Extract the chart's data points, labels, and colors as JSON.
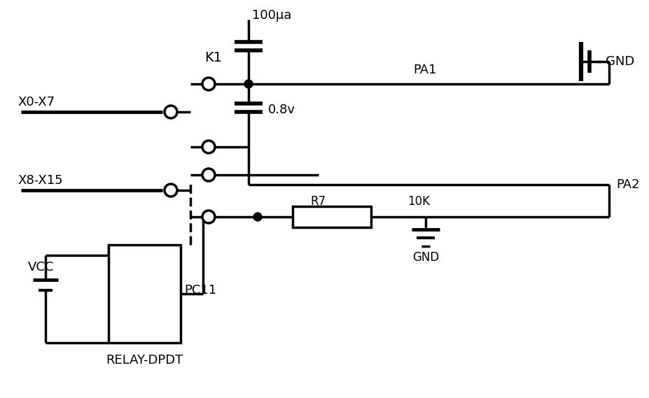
{
  "background": "#ffffff",
  "line_color": "#000000",
  "line_width": 2.5,
  "figsize": [
    9.28,
    5.69
  ],
  "dpi": 100,
  "labels": {
    "k1": "K1",
    "x0x7": "X0-X7",
    "x8x15": "X8-X15",
    "pa1": "PA1",
    "pa2": "PA2",
    "gnd": "GND",
    "vcc": "VCC",
    "relay": "RELAY-DPDT",
    "pc11": "PC11",
    "r7": "R7",
    "cap1": "100μa",
    "v08": "0.8v",
    "r7val": "10K"
  }
}
